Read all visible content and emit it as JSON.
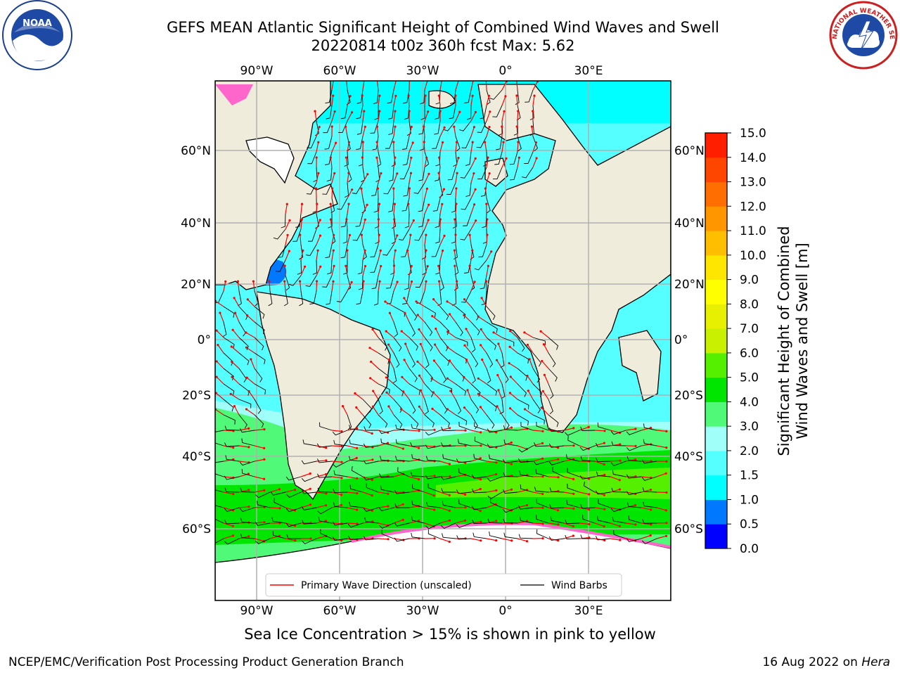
{
  "header": {
    "title_line1": "GEFS MEAN Atlantic Significant Height of Combined Wind Waves and Swell",
    "title_line2": "20220814 t00z 360h fcst   Max: 5.62"
  },
  "logos": {
    "left": {
      "icon": "noaa-logo",
      "text": "NOAA"
    },
    "right": {
      "icon": "nws-logo",
      "text": "NATIONAL WEATHER SERVICE"
    }
  },
  "map": {
    "lon_ticks": [
      "90°W",
      "60°W",
      "30°W",
      "0°",
      "30°E"
    ],
    "lat_ticks": [
      "60°N",
      "40°N",
      "20°N",
      "0°",
      "20°S",
      "40°S",
      "60°S"
    ],
    "colors": {
      "land": "#efecdc",
      "ice": "#ffffff",
      "grid": "#b0b0b0",
      "wave_arrow": "#ff0000",
      "wind_barb": "#000000"
    },
    "legend": {
      "wave_label": "Primary Wave Direction (unscaled)",
      "wind_label": "Wind Barbs"
    }
  },
  "colorbar": {
    "label_line1": "Significant Height of Combined",
    "label_line2": "Wind Waves and Swell [m]",
    "ticks": [
      "0.0",
      "0.5",
      "1.0",
      "1.5",
      "2.0",
      "3.0",
      "4.0",
      "5.0",
      "6.0",
      "7.0",
      "8.0",
      "9.0",
      "10.0",
      "11.0",
      "12.0",
      "13.0",
      "14.0",
      "15.0"
    ],
    "colors": [
      "#0000ff",
      "#0078ff",
      "#00ffff",
      "#55ffff",
      "#a0fff8",
      "#50fa78",
      "#00e600",
      "#55f000",
      "#c8f000",
      "#e6f000",
      "#ffff00",
      "#ffe600",
      "#ffbe00",
      "#ff9600",
      "#ff6e00",
      "#ff4600",
      "#ff1e00"
    ]
  },
  "footer": {
    "subtitle": "Sea Ice Concentration > 15% is shown in pink to yellow",
    "left": "NCEP/EMC/Verification Post Processing Product Generation Branch",
    "right_date": "16 Aug 2022 on",
    "right_host": "Hera"
  }
}
